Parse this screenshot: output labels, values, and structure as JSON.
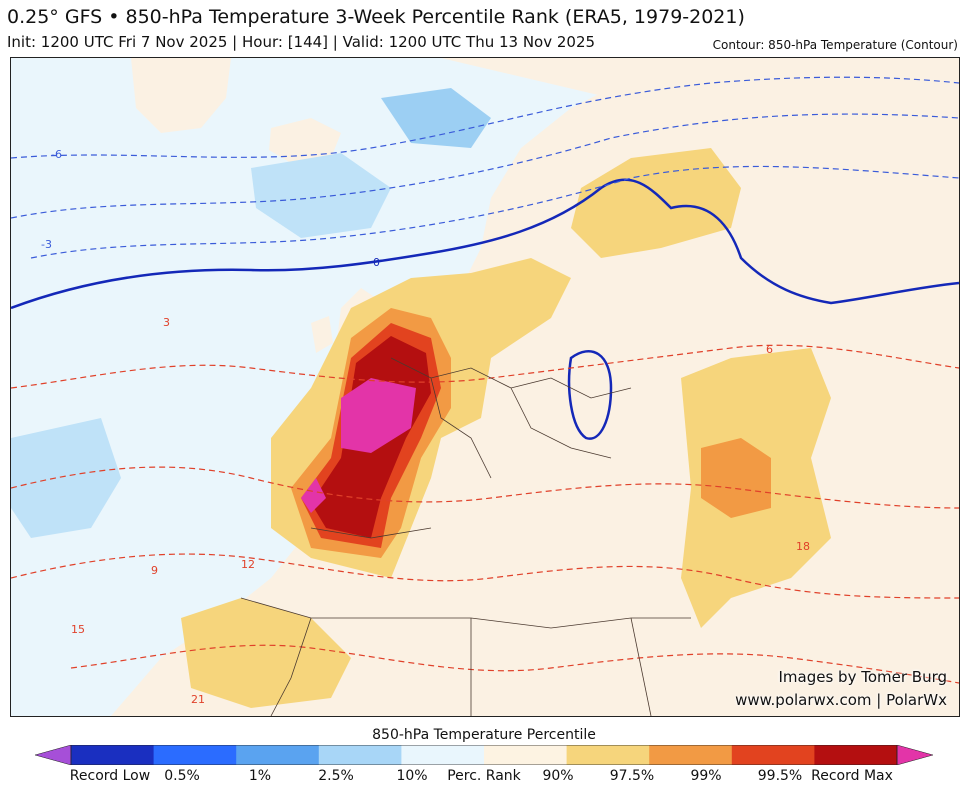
{
  "header": {
    "title": "0.25° GFS • 850-hPa Temperature 3-Week Percentile Rank (ERA5, 1979-2021)",
    "subtitle": "Init: 1200 UTC Fri 7 Nov 2025 | Hour: [144] | Valid: 1200 UTC Thu 13 Nov 2025",
    "contour_note": "Contour: 850-hPa Temperature (Contour)"
  },
  "credits": {
    "line1": "Images by Tomer Burg",
    "line2": "www.polarwx.com | PolarWx"
  },
  "contour_labels": [
    "-6",
    "-3",
    "0",
    "3",
    "6",
    "9",
    "12",
    "15",
    "18",
    "21"
  ],
  "colorbar": {
    "title": "850-hPa Temperature Percentile",
    "labels": [
      "Record Low",
      "0.5%",
      "1%",
      "2.5%",
      "10%",
      "Perc. Rank",
      "90%",
      "97.5%",
      "99%",
      "99.5%",
      "Record Max"
    ],
    "colors": [
      "#a64fd8",
      "#1a2fc0",
      "#2b6cff",
      "#5aa3f0",
      "#a8d6f7",
      "#e9f6fd",
      "#fdf3e2",
      "#f6d57c",
      "#f29a44",
      "#e2431f",
      "#b40f10",
      "#e334a8"
    ]
  }
}
